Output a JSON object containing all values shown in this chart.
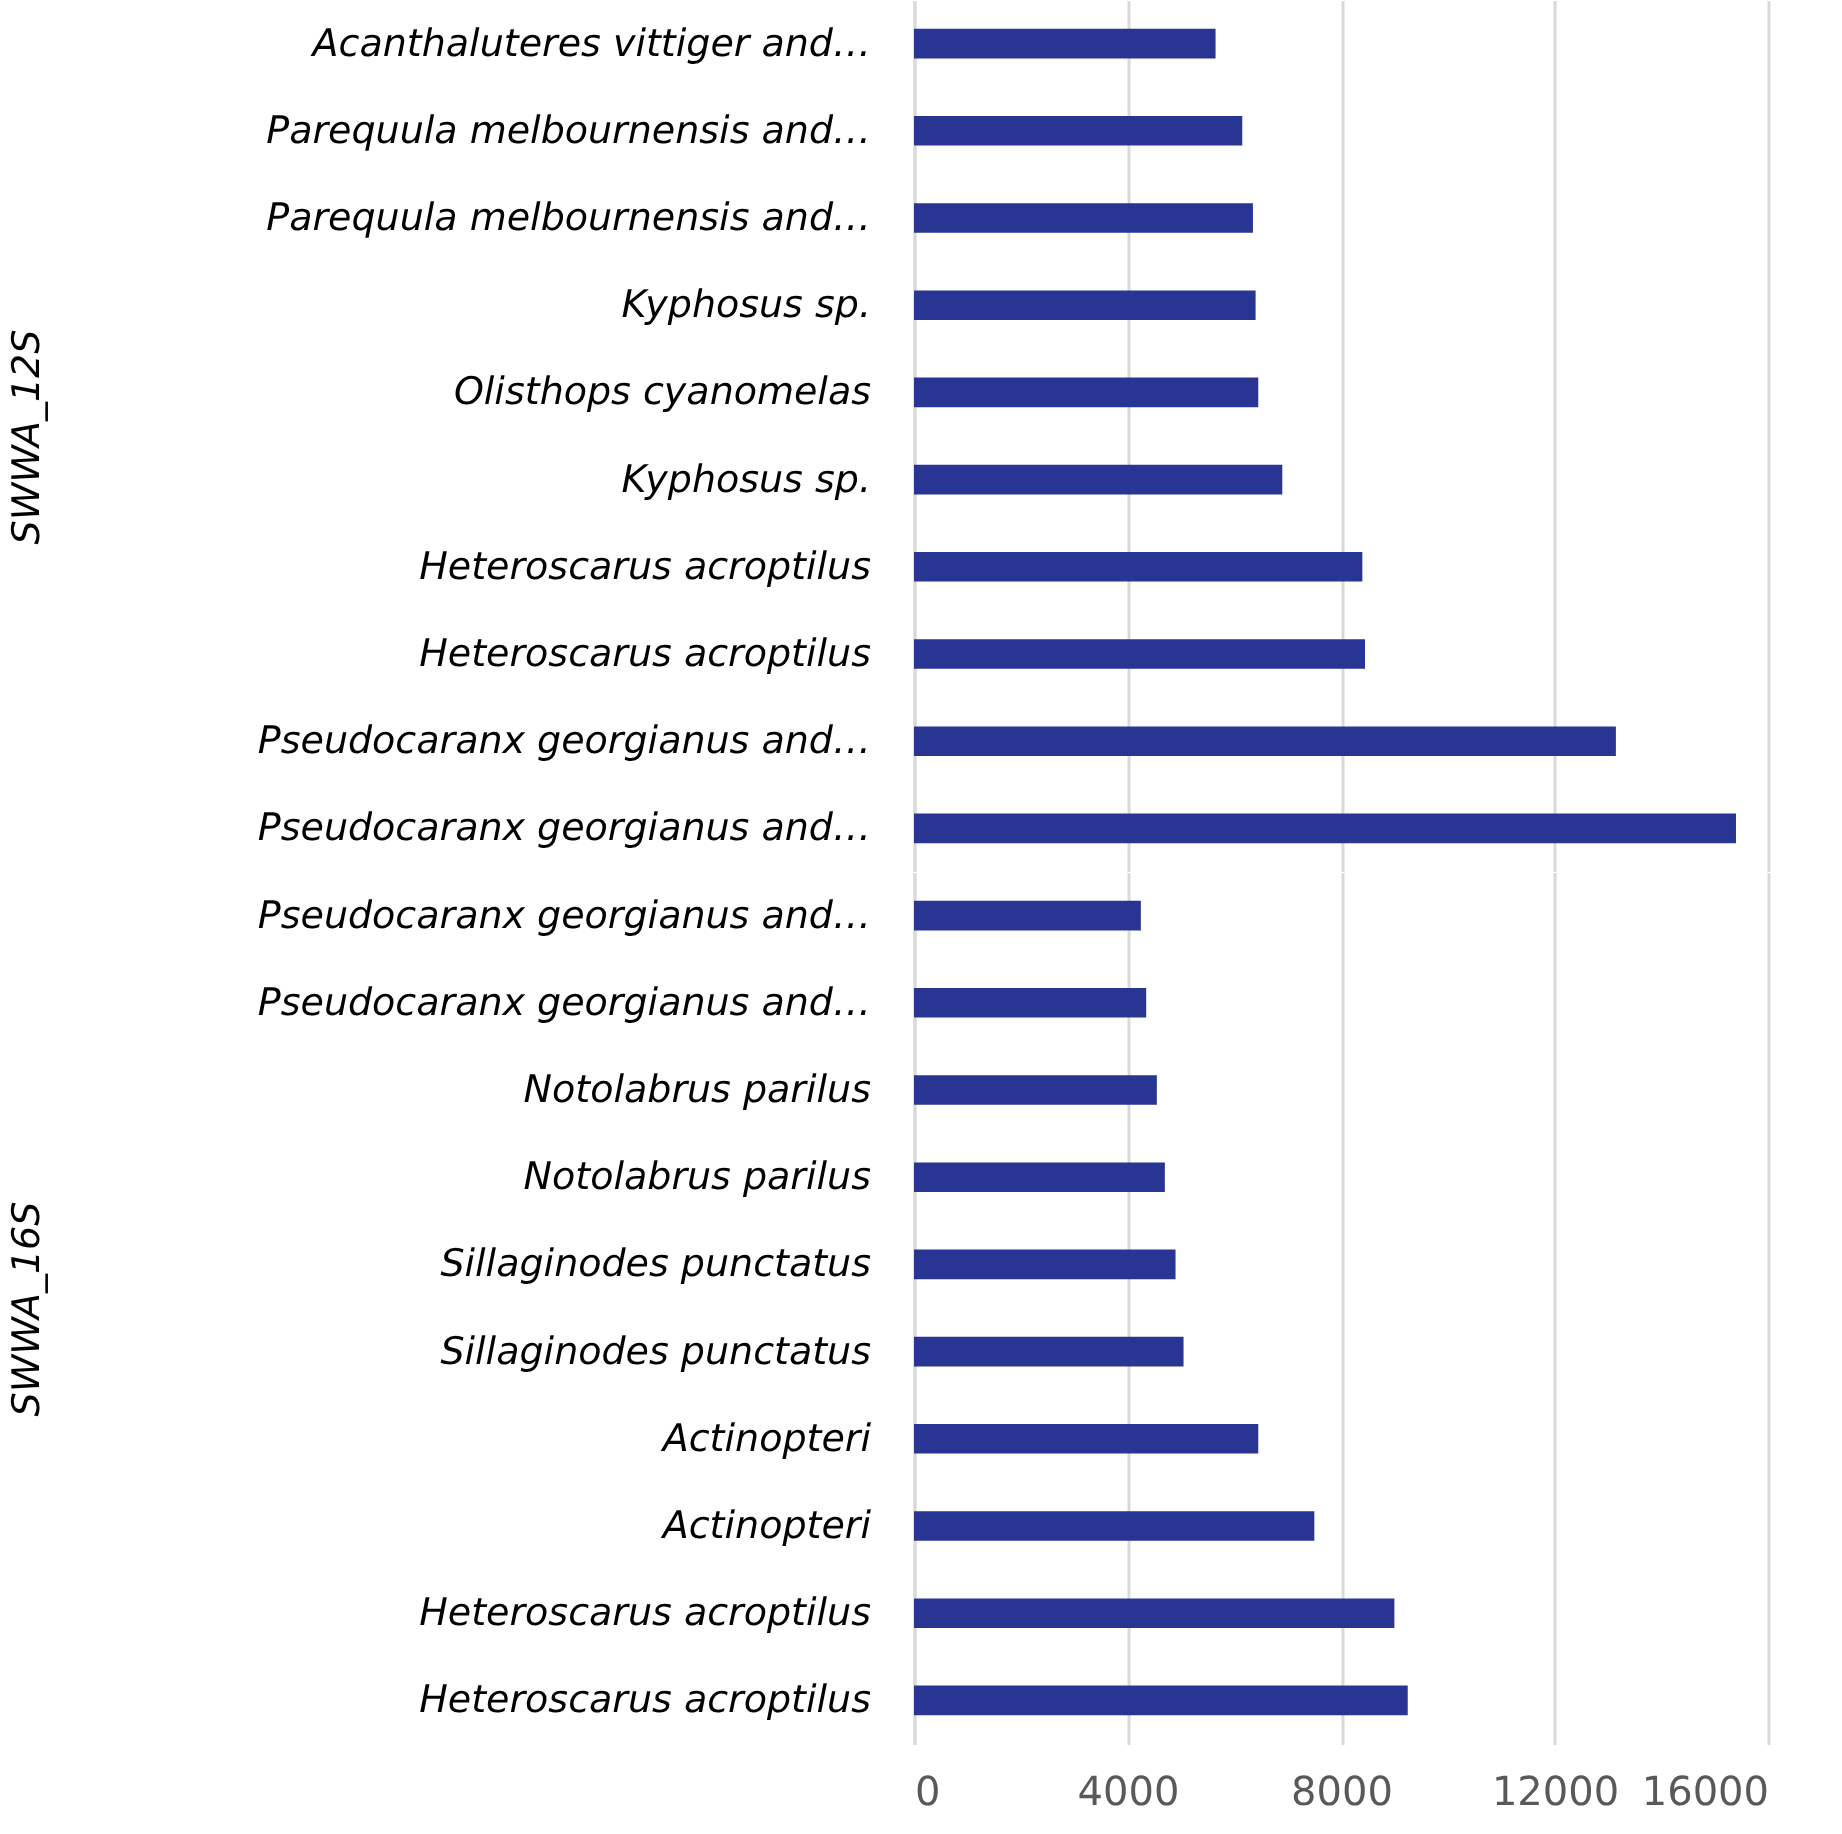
{
  "chart_data": [
    {
      "type": "bar",
      "orientation": "horizontal",
      "ylabel": "SWWA_12S",
      "categories": [
        "Acanthaluteres vittiger and…",
        "Parequula melbournensis and…",
        "Parequula melbournensis and…",
        "Kyphosus sp.",
        "Olisthops cyanomelas",
        "Kyphosus sp.",
        "Heteroscarus acroptilus",
        "Heteroscarus acroptilus",
        "Pseudocaranx georgianus and…",
        "Pseudocaranx georgianus and…"
      ],
      "values": [
        5650,
        6150,
        6350,
        6400,
        6450,
        6900,
        8400,
        8450,
        13150,
        15400
      ],
      "color": "#283593",
      "xlim": [
        0,
        16000
      ],
      "xticks": [
        0,
        4000,
        8000,
        12000,
        16000
      ],
      "grid": "x",
      "tick_labels": "y"
    },
    {
      "type": "bar",
      "orientation": "horizontal",
      "ylabel": "SWWA_16S",
      "categories": [
        "Pseudocaranx georgianus and…",
        "Pseudocaranx georgianus and…",
        "Notolabrus parilus",
        "Notolabrus parilus",
        "Sillaginodes punctatus",
        "Sillaginodes punctatus",
        "Actinopteri",
        "Actinopteri",
        "Heteroscarus acroptilus",
        "Heteroscarus acroptilus"
      ],
      "values": [
        4250,
        4350,
        4550,
        4700,
        4900,
        5050,
        6450,
        7500,
        9000,
        9250
      ],
      "color": "#283593",
      "xlim": [
        0,
        16000
      ],
      "xticks": [
        0,
        4000,
        8000,
        12000,
        16000
      ],
      "grid": "x"
    }
  ]
}
